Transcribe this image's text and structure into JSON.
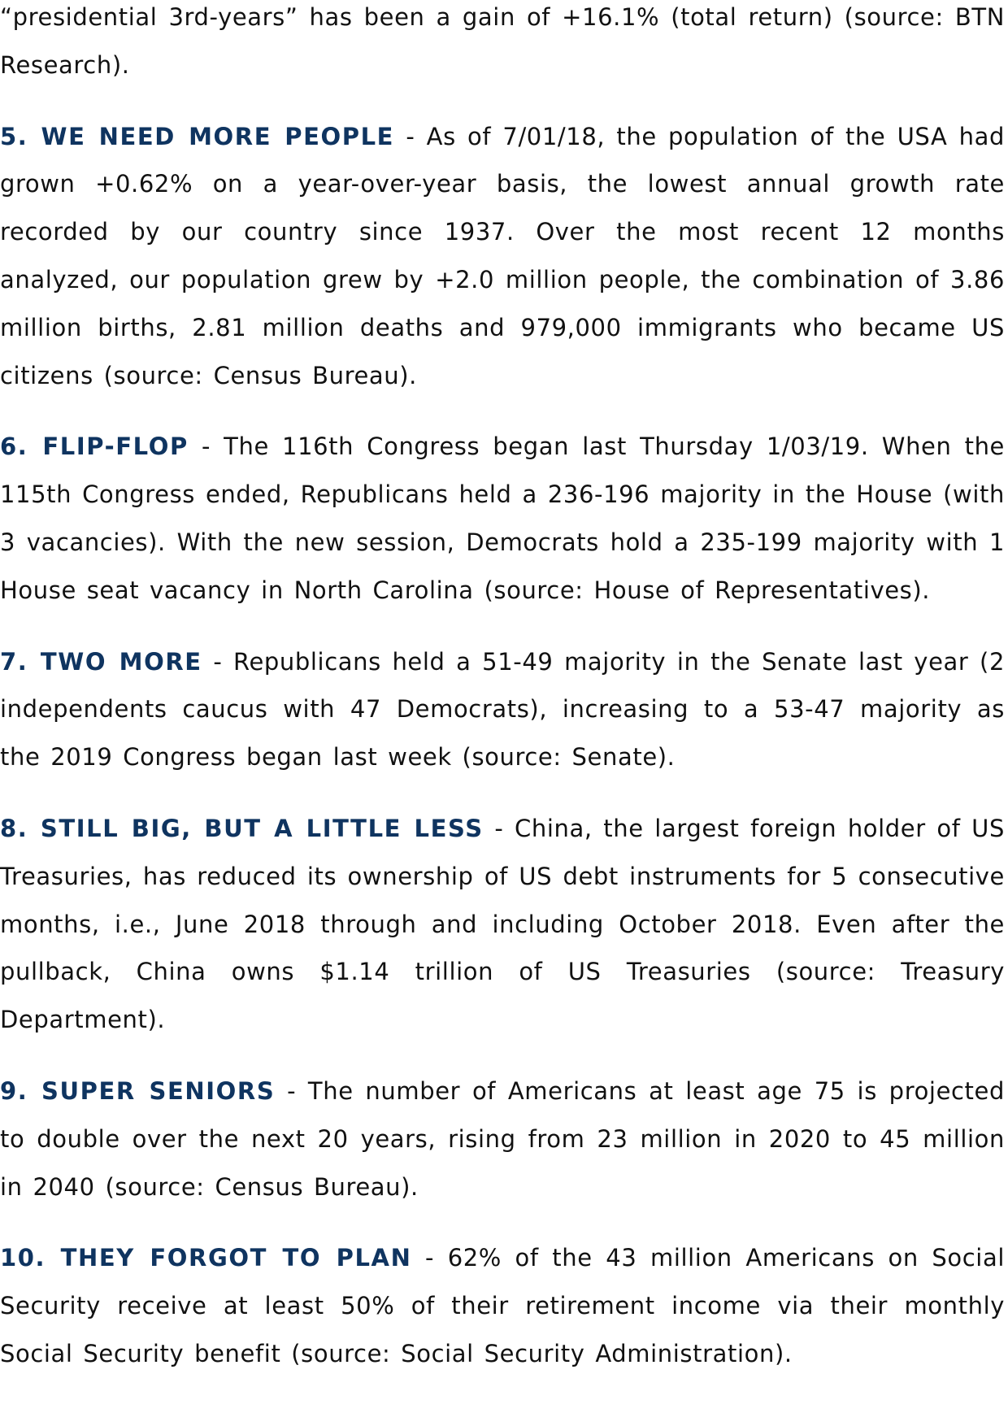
{
  "paragraphs": [
    {
      "heading": "",
      "text": "“presidential 3rd-years” has been a gain of +16.1% (total return) (source: BTN Research)."
    },
    {
      "heading": "5. WE NEED MORE PEOPLE",
      "text": " - As of 7/01/18, the population of the USA had grown +0.62% on a year-over-year basis, the lowest annual growth rate recorded by our country since 1937.  Over the most recent 12 months analyzed, our population grew by +2.0 million people, the combination of 3.86 million births, 2.81 million deaths and 979,000 immigrants who became US citizens (source: Census Bureau)."
    },
    {
      "heading": "6. FLIP-FLOP",
      "text": " - The 116th Congress began last Thursday 1/03/19.  When the 115th Congress ended, Republicans held a 236-196 majority in the House (with 3 vacancies).  With the new session, Democrats hold a 235-199 majority with 1 House seat vacancy in North Carolina (source: House of Representatives)."
    },
    {
      "heading": "7. TWO MORE",
      "text": " - Republicans held a 51-49 majority in the Senate last year (2 independents caucus with 47 Democrats), increasing to a 53-47 majority as the 2019 Congress began last week (source: Senate)."
    },
    {
      "heading": "8. STILL BIG, BUT A LITTLE LESS",
      "text": " - China, the largest foreign holder of US Treasuries, has reduced its ownership of US debt instruments for 5 consecutive months, i.e., June 2018 through and including October 2018.  Even after the pullback, China owns $1.14 trillion of US Treasuries (source: Treasury Department)."
    },
    {
      "heading": "9. SUPER SENIORS",
      "text": " - The number of Americans at least age 75 is projected to double over the next 20 years, rising from 23 million in 2020 to 45 million in 2040 (source: Census Bureau)."
    },
    {
      "heading": "10. THEY FORGOT TO PLAN",
      "text": " - 62% of the 43 million Americans on Social Security receive at least 50% of their retirement income via their monthly Social Security benefit (source: Social Security Administration)."
    }
  ],
  "colors": {
    "heading": "#0f3460",
    "text": "#111111"
  }
}
